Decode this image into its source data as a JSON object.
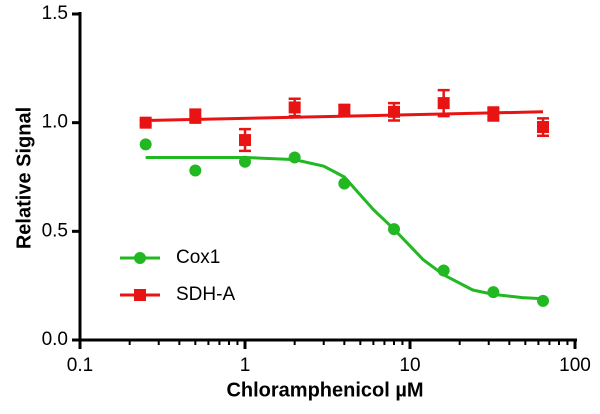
{
  "chart_data": {
    "type": "scatter",
    "xlabel": "Chloramphenicol µM",
    "ylabel": "Relative Signal",
    "xscale": "log",
    "xlim": [
      0.1,
      100
    ],
    "xticks": [
      0.1,
      1,
      10,
      100
    ],
    "xminorticks": [
      0.2,
      0.3,
      0.4,
      0.5,
      0.6,
      0.7,
      0.8,
      0.9,
      2,
      3,
      4,
      5,
      6,
      7,
      8,
      9,
      20,
      30,
      40,
      50,
      60,
      70,
      80,
      90
    ],
    "ylim": [
      0,
      1.5
    ],
    "yticks": [
      {
        "value": 0,
        "label": "0.0"
      },
      0.5,
      {
        "value": 1,
        "label": "1.0"
      },
      1.5
    ],
    "legend": "left",
    "series": [
      {
        "name": "Cox1",
        "color": "#22b822",
        "marker": "circle",
        "x": [
          0.25,
          0.5,
          1,
          2,
          4,
          8,
          16,
          32,
          64
        ],
        "values": [
          0.9,
          0.78,
          0.82,
          0.84,
          0.72,
          0.51,
          0.32,
          0.22,
          0.18
        ],
        "fit": {
          "x": [
            0.25,
            1,
            2,
            3,
            4,
            6,
            8,
            12,
            16,
            24,
            32,
            48,
            64
          ],
          "values": [
            0.84,
            0.84,
            0.83,
            0.8,
            0.75,
            0.6,
            0.51,
            0.37,
            0.3,
            0.23,
            0.21,
            0.195,
            0.19
          ]
        }
      },
      {
        "name": "SDH-A",
        "color": "#e81414",
        "marker": "square",
        "x": [
          0.25,
          0.5,
          1,
          2,
          4,
          8,
          16,
          32,
          64
        ],
        "values": [
          1.0,
          1.03,
          0.92,
          1.07,
          1.06,
          1.05,
          1.09,
          1.04,
          0.98
        ],
        "errors": [
          0.01,
          0.03,
          0.05,
          0.04,
          0.02,
          0.04,
          0.06,
          0.03,
          0.04
        ],
        "fit": {
          "x": [
            0.25,
            64
          ],
          "values": [
            1.01,
            1.05
          ]
        }
      }
    ]
  }
}
